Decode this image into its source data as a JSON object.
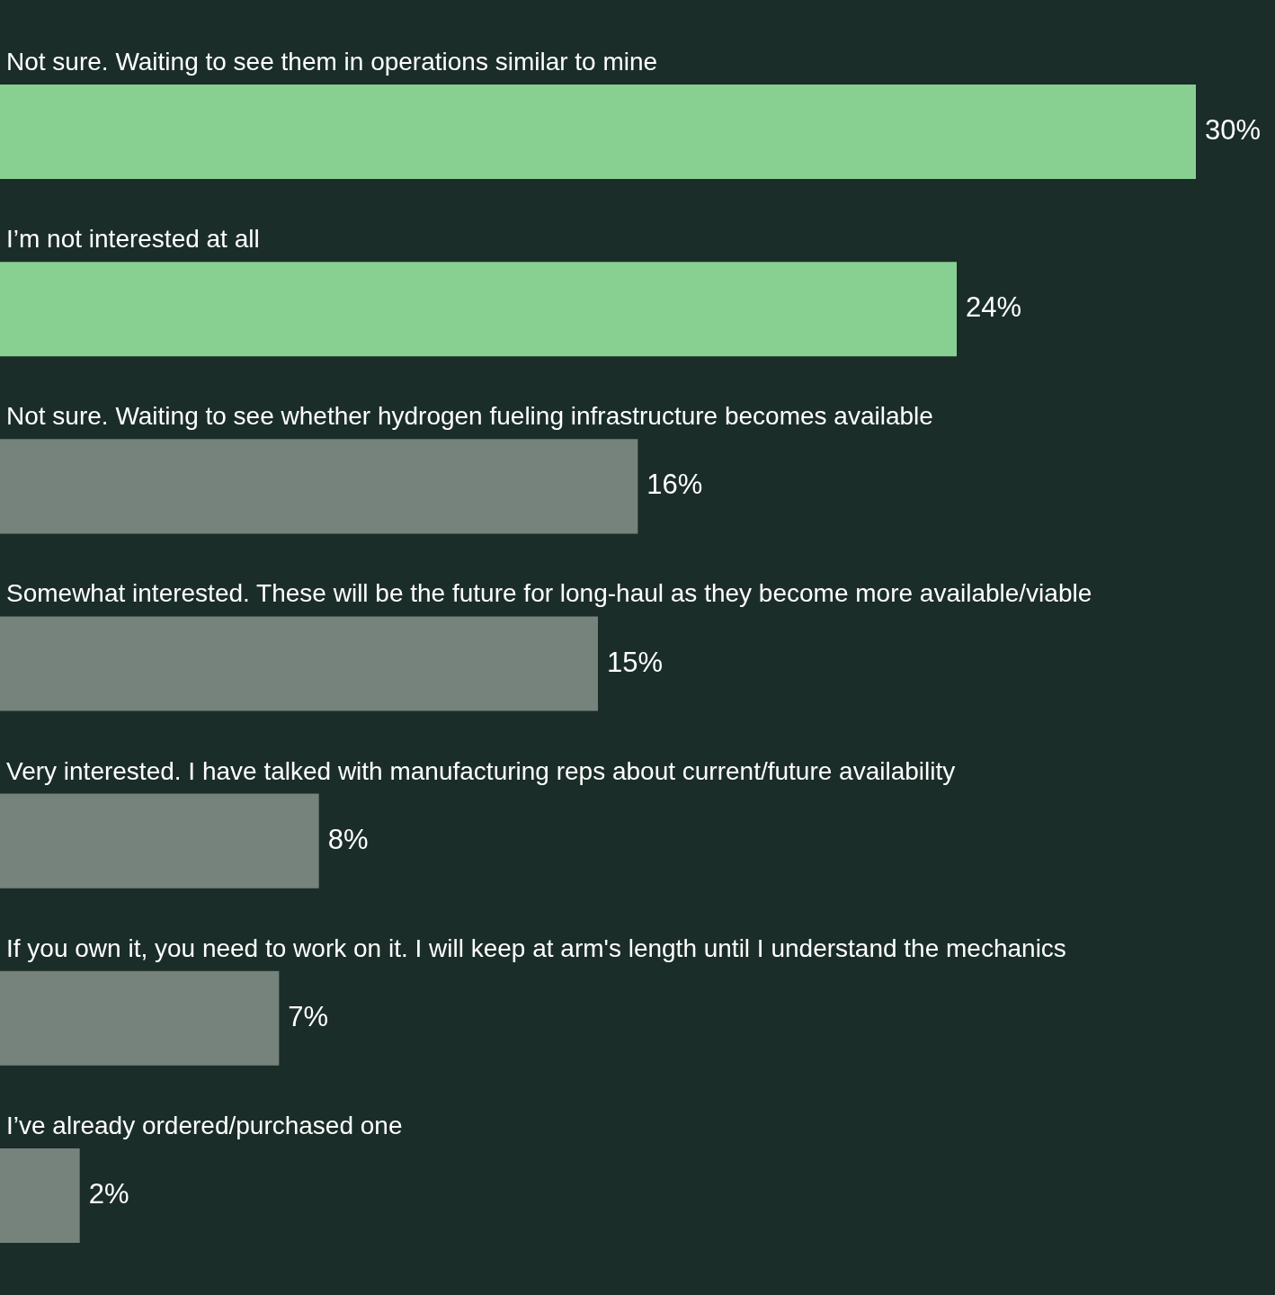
{
  "chart_data": {
    "type": "bar",
    "orientation": "horizontal",
    "categories": [
      "Not sure. Waiting to see them in operations similar to mine",
      "I’m not interested at all",
      "Not sure. Waiting to see whether hydrogen fueling infrastructure becomes available",
      "Somewhat interested. These will be the future for long-haul as they become more available/viable",
      "Very interested. I have talked with manufacturing reps about current/future availability",
      "If you own it, you need to work on it. I will keep at arm's length until I understand the mechanics",
      "I’ve already ordered/purchased one"
    ],
    "values": [
      30,
      24,
      16,
      15,
      8,
      7,
      2
    ],
    "value_labels": [
      "30%",
      "24%",
      "16%",
      "15%",
      "8%",
      "7%",
      "2%"
    ],
    "colors": [
      "#88d092",
      "#88d092",
      "#76837d",
      "#76837d",
      "#76837d",
      "#76837d",
      "#76837d"
    ],
    "legend": false
  }
}
